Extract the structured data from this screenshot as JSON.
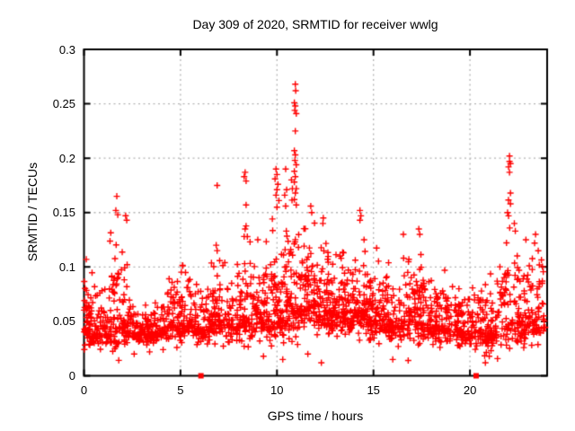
{
  "chart_data": {
    "type": "scatter",
    "title": "Day 309 of 2020, SRMTID for receiver wwlg",
    "xlabel": "GPS time / hours",
    "ylabel": "SRMTID / TECUs",
    "xlim": [
      0,
      24
    ],
    "ylim": [
      0,
      0.3
    ],
    "x_ticks": [
      0,
      5,
      10,
      15,
      20
    ],
    "x_tick_labels": [
      "0",
      "5",
      "10",
      "15",
      "20"
    ],
    "y_ticks": [
      0,
      0.05,
      0.1,
      0.15,
      0.2,
      0.25,
      0.3
    ],
    "y_tick_labels": [
      "0",
      "0.05",
      "0.1",
      "0.15",
      "0.2",
      "0.25",
      "0.3"
    ],
    "grid": "dotted-major-both-axes",
    "legend": "none",
    "colors": {
      "marker": "#ff0000",
      "grid": "#b4b4b4",
      "axis": "#000000",
      "text": "#000000",
      "background": "#ffffff"
    },
    "series": [
      {
        "name": "srmtid-values",
        "marker": "plus",
        "color": "#ff0000",
        "seed": 42,
        "density_segments_columns": [
          "x_start",
          "x_end",
          "count",
          "y_base",
          "y_spread",
          "y_max"
        ],
        "density_segments": [
          [
            0.0,
            0.45,
            60,
            0.045,
            0.024,
            0.108
          ],
          [
            0.45,
            1.3,
            70,
            0.04,
            0.018,
            0.09
          ],
          [
            1.3,
            1.85,
            55,
            0.048,
            0.038,
            0.16
          ],
          [
            1.85,
            2.25,
            40,
            0.05,
            0.032,
            0.148
          ],
          [
            2.25,
            3.0,
            70,
            0.04,
            0.012,
            0.072
          ],
          [
            3.0,
            4.3,
            115,
            0.041,
            0.014,
            0.085
          ],
          [
            4.3,
            5.0,
            70,
            0.046,
            0.018,
            0.092
          ],
          [
            5.0,
            5.6,
            55,
            0.05,
            0.024,
            0.112
          ],
          [
            5.6,
            6.6,
            85,
            0.044,
            0.018,
            0.096
          ],
          [
            6.6,
            7.4,
            75,
            0.052,
            0.024,
            0.122
          ],
          [
            7.4,
            8.2,
            70,
            0.048,
            0.022,
            0.108
          ],
          [
            8.2,
            8.75,
            50,
            0.055,
            0.034,
            0.158
          ],
          [
            8.75,
            9.6,
            80,
            0.052,
            0.024,
            0.128
          ],
          [
            9.6,
            10.45,
            85,
            0.06,
            0.038,
            0.185
          ],
          [
            10.45,
            11.15,
            75,
            0.065,
            0.042,
            0.198
          ],
          [
            11.15,
            12.0,
            90,
            0.065,
            0.032,
            0.152
          ],
          [
            12.0,
            13.0,
            105,
            0.06,
            0.028,
            0.142
          ],
          [
            13.0,
            14.0,
            100,
            0.055,
            0.024,
            0.118
          ],
          [
            14.0,
            14.6,
            60,
            0.06,
            0.03,
            0.148
          ],
          [
            14.6,
            15.6,
            95,
            0.052,
            0.024,
            0.118
          ],
          [
            15.6,
            16.6,
            95,
            0.048,
            0.024,
            0.112
          ],
          [
            16.6,
            17.6,
            90,
            0.052,
            0.028,
            0.136
          ],
          [
            17.6,
            18.6,
            90,
            0.047,
            0.02,
            0.104
          ],
          [
            18.6,
            19.6,
            88,
            0.044,
            0.018,
            0.098
          ],
          [
            19.6,
            20.6,
            85,
            0.041,
            0.017,
            0.09
          ],
          [
            20.6,
            21.4,
            75,
            0.04,
            0.02,
            0.096
          ],
          [
            21.4,
            22.2,
            60,
            0.052,
            0.034,
            0.162
          ],
          [
            22.2,
            23.0,
            72,
            0.048,
            0.028,
            0.138
          ],
          [
            23.0,
            23.9,
            72,
            0.052,
            0.024,
            0.115
          ]
        ],
        "outlier_points": [
          [
            0.12,
            0.107
          ],
          [
            1.7,
            0.165
          ],
          [
            1.65,
            0.152
          ],
          [
            1.75,
            0.148
          ],
          [
            6.9,
            0.175
          ],
          [
            6.85,
            0.12
          ],
          [
            6.9,
            0.115
          ],
          [
            8.35,
            0.187
          ],
          [
            8.3,
            0.183
          ],
          [
            8.4,
            0.179
          ],
          [
            8.4,
            0.157
          ],
          [
            8.35,
            0.135
          ],
          [
            8.3,
            0.128
          ],
          [
            9.95,
            0.19
          ],
          [
            10.0,
            0.185
          ],
          [
            9.9,
            0.181
          ],
          [
            10.05,
            0.176
          ],
          [
            10.0,
            0.171
          ],
          [
            9.95,
            0.166
          ],
          [
            10.1,
            0.161
          ],
          [
            10.0,
            0.155
          ],
          [
            10.45,
            0.19
          ],
          [
            10.5,
            0.171
          ],
          [
            10.4,
            0.166
          ],
          [
            10.45,
            0.156
          ],
          [
            10.95,
            0.268
          ],
          [
            10.97,
            0.262
          ],
          [
            10.9,
            0.251
          ],
          [
            10.95,
            0.248
          ],
          [
            10.92,
            0.244
          ],
          [
            11.0,
            0.241
          ],
          [
            10.95,
            0.225
          ],
          [
            10.9,
            0.207
          ],
          [
            10.95,
            0.203
          ],
          [
            10.93,
            0.198
          ],
          [
            11.0,
            0.194
          ],
          [
            10.9,
            0.188
          ],
          [
            10.95,
            0.183
          ],
          [
            10.9,
            0.178
          ],
          [
            11.0,
            0.172
          ],
          [
            10.95,
            0.168
          ],
          [
            10.9,
            0.162
          ],
          [
            11.0,
            0.157
          ],
          [
            10.75,
            0.18
          ],
          [
            10.8,
            0.172
          ],
          [
            11.75,
            0.156
          ],
          [
            11.8,
            0.15
          ],
          [
            12.4,
            0.145
          ],
          [
            12.38,
            0.14
          ],
          [
            14.3,
            0.152
          ],
          [
            14.35,
            0.147
          ],
          [
            14.3,
            0.143
          ],
          [
            16.55,
            0.13
          ],
          [
            17.35,
            0.135
          ],
          [
            17.4,
            0.13
          ],
          [
            22.05,
            0.202
          ],
          [
            22.05,
            0.197
          ],
          [
            22.1,
            0.195
          ],
          [
            22.0,
            0.192
          ],
          [
            22.05,
            0.187
          ],
          [
            22.1,
            0.168
          ],
          [
            22.1,
            0.158
          ],
          [
            21.95,
            0.15
          ],
          [
            22.0,
            0.147
          ],
          [
            22.3,
            0.14
          ],
          [
            22.35,
            0.133
          ],
          [
            22.9,
            0.125
          ],
          [
            23.4,
            0.13
          ],
          [
            23.35,
            0.122
          ],
          [
            1.6,
            0.025
          ],
          [
            2.6,
            0.02
          ],
          [
            4.1,
            0.024
          ],
          [
            3.4,
            0.022
          ],
          [
            9.3,
            0.018
          ],
          [
            10.3,
            0.015
          ],
          [
            11.6,
            0.02
          ],
          [
            12.3,
            0.012
          ],
          [
            16.0,
            0.015
          ],
          [
            16.8,
            0.014
          ],
          [
            20.8,
            0.012
          ],
          [
            21.0,
            0.018
          ],
          [
            23.2,
            0.028
          ]
        ]
      },
      {
        "name": "baseline-event-markers",
        "marker": "filled-square",
        "color": "#ff0000",
        "points": [
          [
            6.06,
            0
          ],
          [
            20.32,
            0
          ]
        ]
      }
    ]
  }
}
